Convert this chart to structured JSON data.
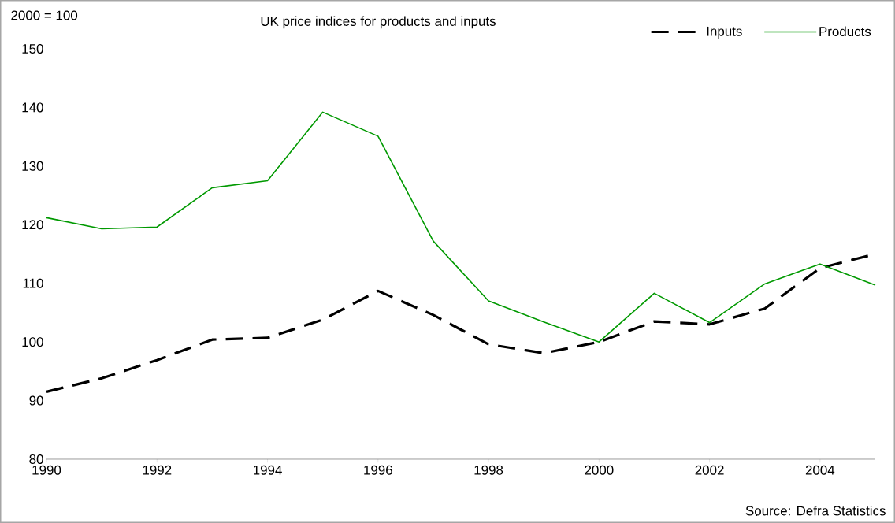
{
  "chart_data": {
    "type": "line",
    "title": "UK price indices for products and inputs",
    "ylabel": "2000 = 100",
    "x": [
      1990,
      1991,
      1992,
      1993,
      1994,
      1995,
      1996,
      1997,
      1998,
      1999,
      2000,
      2001,
      2002,
      2003,
      2004,
      2005
    ],
    "series": [
      {
        "name": "Inputs",
        "color": "#000000",
        "line_style": "dashed",
        "values": [
          91.5,
          93.8,
          96.9,
          100.4,
          100.7,
          103.8,
          108.7,
          104.6,
          99.6,
          98.1,
          100,
          103.5,
          103.0,
          105.7,
          112.6,
          115.0
        ]
      },
      {
        "name": "Products",
        "color": "#009900",
        "line_style": "solid",
        "values": [
          121.2,
          119.3,
          119.6,
          126.3,
          127.5,
          139.2,
          135.1,
          117.2,
          107.0,
          103.4,
          100,
          108.3,
          103.3,
          109.9,
          113.3,
          109.7
        ]
      }
    ],
    "xlim": [
      1990,
      2005
    ],
    "xticks": [
      1990,
      1992,
      1994,
      1996,
      1998,
      2000,
      2002,
      2004
    ],
    "ylim": [
      80,
      150
    ],
    "yticks": [
      80,
      90,
      100,
      110,
      120,
      130,
      140,
      150
    ],
    "legend": "top right",
    "grid": false,
    "annotations": [
      "Source: Defra Statistics"
    ]
  }
}
